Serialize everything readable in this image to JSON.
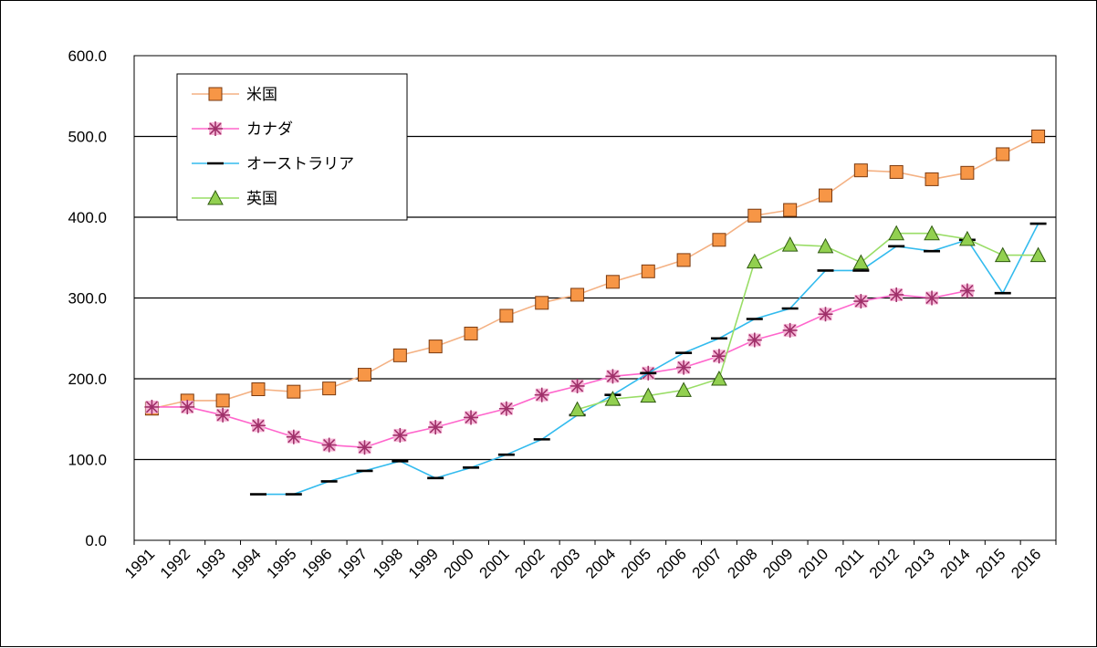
{
  "chart_data": {
    "type": "line",
    "title": "",
    "xlabel": "",
    "ylabel": "",
    "ylim": [
      0,
      600
    ],
    "y_ticks": [
      "0.0",
      "100.0",
      "200.0",
      "300.0",
      "400.0",
      "500.0",
      "600.0"
    ],
    "grid": "horizontal",
    "legend_position": "top-left",
    "categories": [
      "1991",
      "1992",
      "1993",
      "1994",
      "1995",
      "1996",
      "1997",
      "1998",
      "1999",
      "2000",
      "2001",
      "2002",
      "2003",
      "2004",
      "2005",
      "2006",
      "2007",
      "2008",
      "2009",
      "2010",
      "2011",
      "2012",
      "2013",
      "2014",
      "2015",
      "2016"
    ],
    "series": [
      {
        "name": "米国",
        "color": "#f4b183",
        "marker": "square",
        "marker_fill": "#f79646",
        "values": [
          163,
          173,
          173,
          187,
          184,
          188,
          205,
          229,
          240,
          256,
          278,
          294,
          304,
          320,
          333,
          347,
          372,
          402,
          409,
          427,
          458,
          456,
          447,
          455,
          478,
          500
        ]
      },
      {
        "name": "カナダ",
        "color": "#ff66cc",
        "marker": "asterisk",
        "marker_fill": "#d06090",
        "values": [
          165,
          165,
          155,
          142,
          128,
          118,
          115,
          130,
          140,
          152,
          163,
          180,
          191,
          203,
          207,
          214,
          228,
          248,
          260,
          280,
          296,
          304,
          300,
          309,
          null,
          null
        ]
      },
      {
        "name": "オーストラリア",
        "color": "#33bbee",
        "marker": "dash",
        "marker_fill": "#000000",
        "values": [
          null,
          null,
          null,
          57,
          57,
          73,
          86,
          98,
          77,
          90,
          106,
          125,
          155,
          180,
          207,
          232,
          250,
          274,
          287,
          334,
          334,
          364,
          358,
          372,
          306,
          392
        ]
      },
      {
        "name": "英国",
        "color": "#99dd66",
        "marker": "triangle",
        "marker_fill": "#92d050",
        "values": [
          null,
          null,
          null,
          null,
          null,
          null,
          null,
          null,
          null,
          null,
          null,
          null,
          162,
          175,
          179,
          186,
          200,
          345,
          366,
          364,
          344,
          380,
          380,
          373,
          353,
          353
        ]
      }
    ]
  }
}
